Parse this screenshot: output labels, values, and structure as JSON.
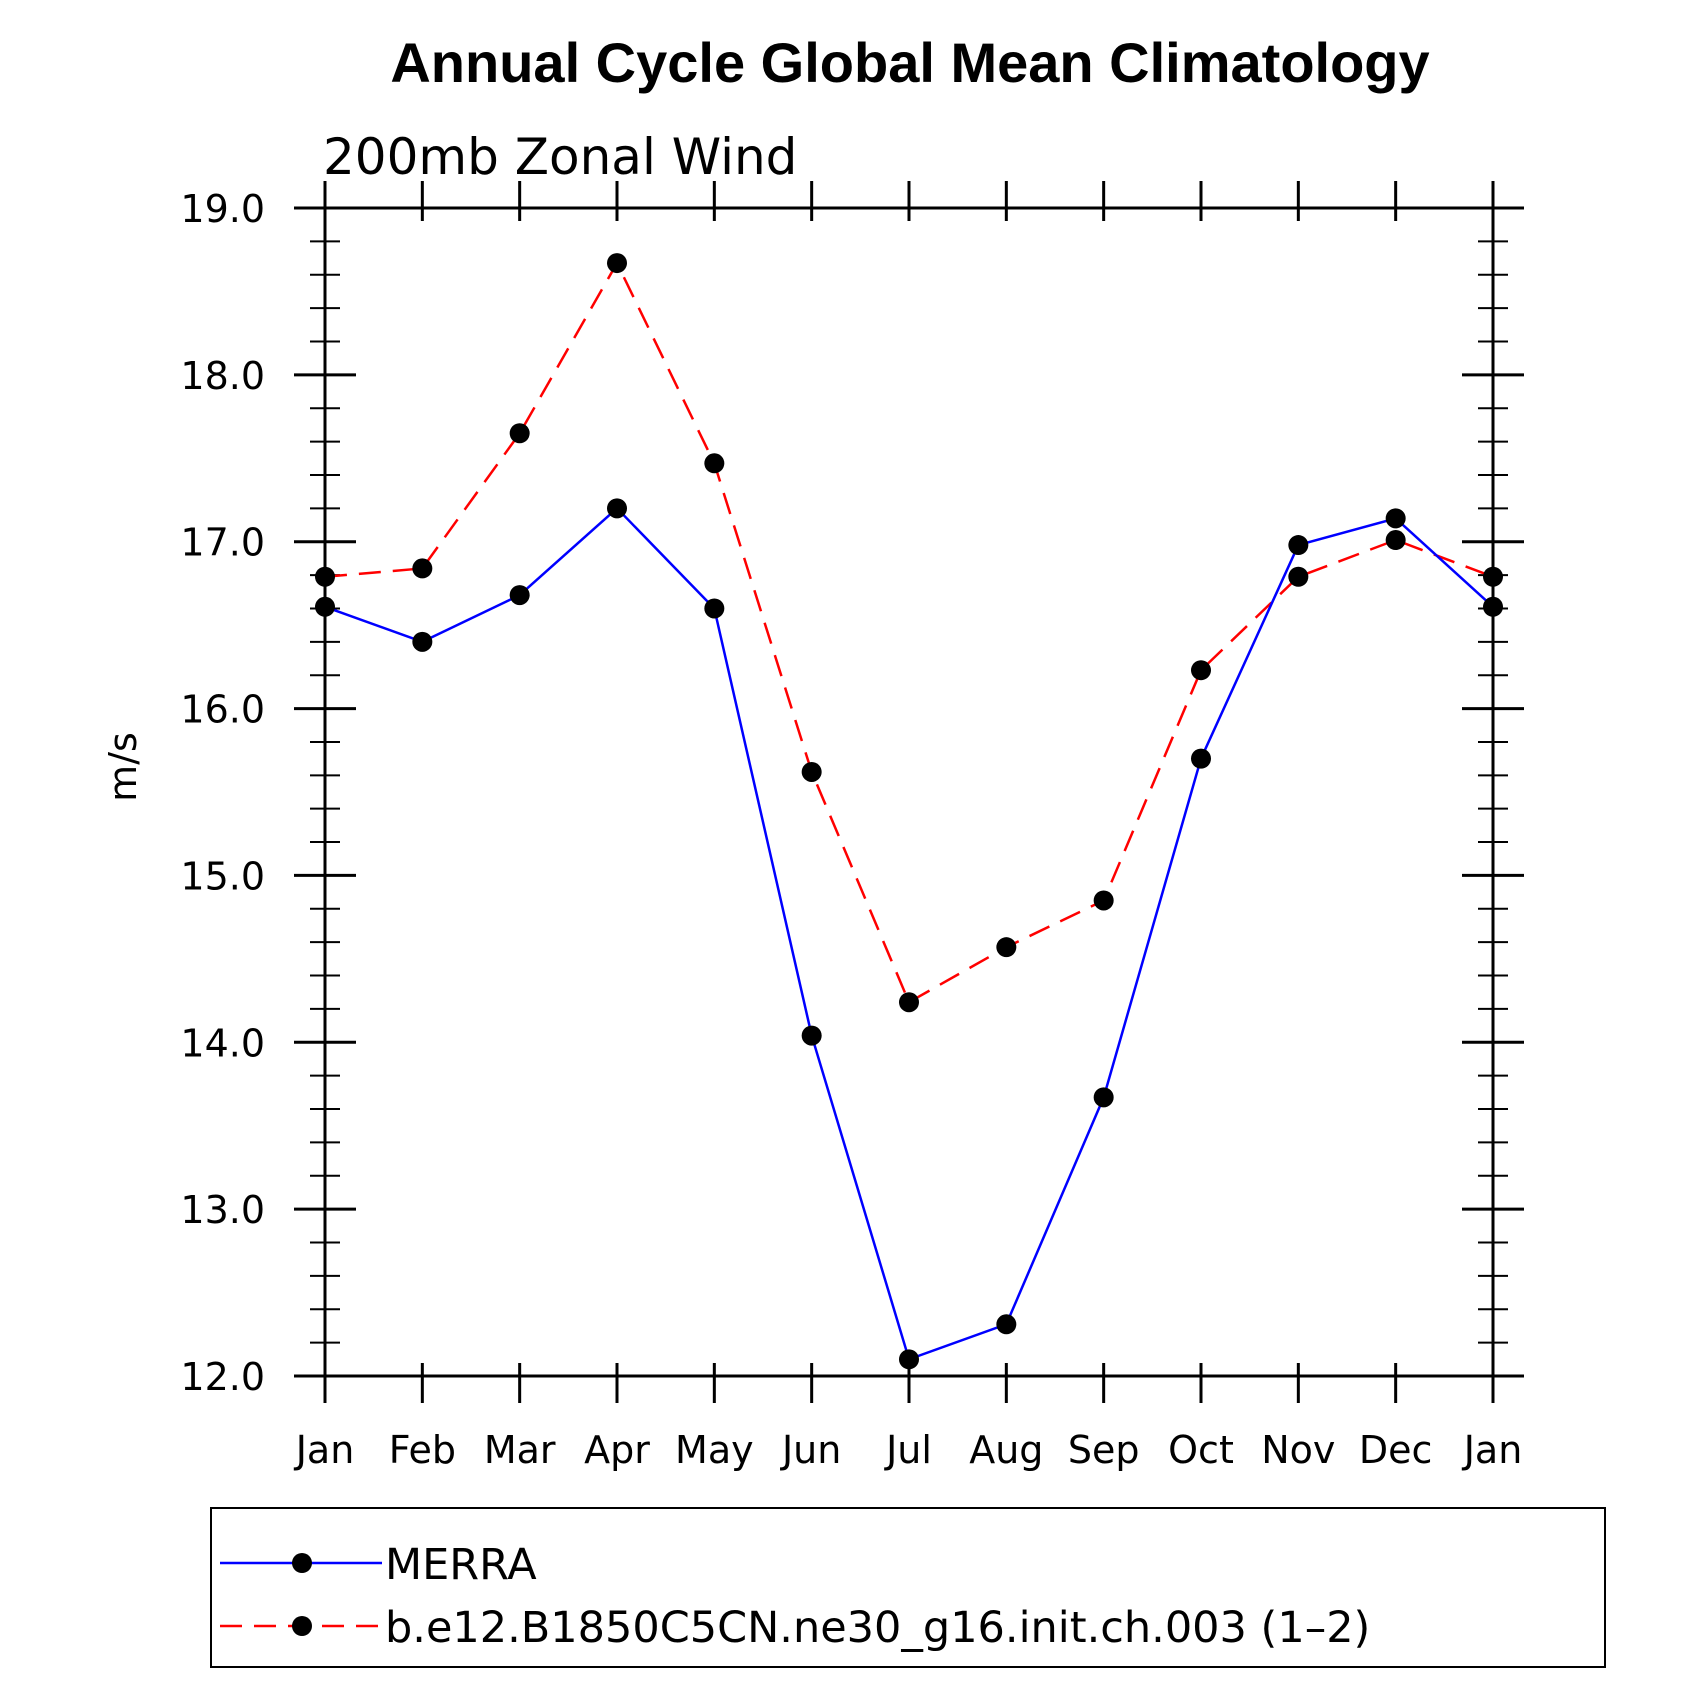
{
  "chart_data": {
    "type": "line",
    "title": "Annual Cycle Global Mean Climatology",
    "subtitle": "200mb Zonal Wind",
    "xlabel": "",
    "ylabel": "m/s",
    "ylim": [
      12.0,
      19.0
    ],
    "yticks": [
      "12.0",
      "13.0",
      "14.0",
      "15.0",
      "16.0",
      "17.0",
      "18.0",
      "19.0"
    ],
    "categories": [
      "Jan",
      "Feb",
      "Mar",
      "Apr",
      "May",
      "Jun",
      "Jul",
      "Aug",
      "Sep",
      "Oct",
      "Nov",
      "Dec",
      "Jan"
    ],
    "series": [
      {
        "name": "MERRA",
        "color": "#0000ff",
        "dash": "solid",
        "marker": "filled-circle",
        "values": [
          16.61,
          16.4,
          16.68,
          17.2,
          16.6,
          14.04,
          12.1,
          12.31,
          13.67,
          15.7,
          16.98,
          17.14,
          16.61
        ]
      },
      {
        "name": "b.e12.B1850C5CN.ne30_g16.init.ch.003 (1–2)",
        "color": "#ff0000",
        "dash": "dashed",
        "marker": "filled-circle",
        "values": [
          16.79,
          16.84,
          17.65,
          18.67,
          17.47,
          15.62,
          14.24,
          14.57,
          14.85,
          16.23,
          16.79,
          17.01,
          16.79
        ]
      }
    ],
    "legend_position": "bottom"
  }
}
